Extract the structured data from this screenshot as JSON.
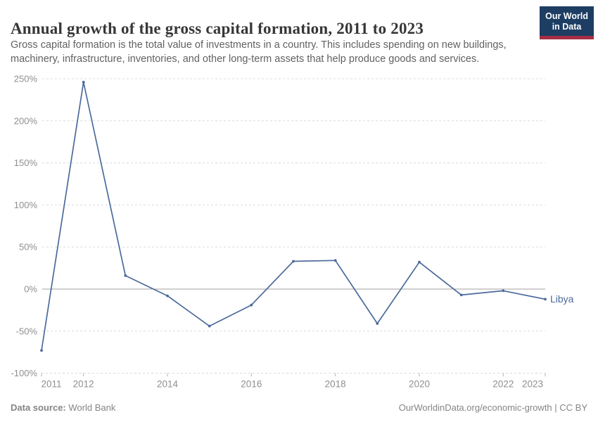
{
  "header": {
    "title": "Annual growth of the gross capital formation, 2011 to 2023",
    "subtitle_lines": [
      "Gross capital formation is the total value of investments in a country. This includes spending on new buildings,",
      "machinery, infrastructure, inventories, and other long-term assets that help produce goods and services."
    ]
  },
  "logo": {
    "line1": "Our World",
    "line2": "in Data",
    "bg_color": "#1d3d63",
    "accent_color": "#a52e44"
  },
  "chart_data": {
    "type": "line",
    "title": "Annual growth of the gross capital formation, 2011 to 2023",
    "x": [
      2011,
      2012,
      2013,
      2014,
      2015,
      2016,
      2017,
      2018,
      2019,
      2020,
      2021,
      2022,
      2023
    ],
    "series": [
      {
        "name": "Libya",
        "values": [
          -73,
          246,
          16,
          -8,
          -44,
          -19,
          33,
          34,
          -41,
          32,
          -7,
          -2,
          -12
        ],
        "color": "#4C6A9C"
      }
    ],
    "ylim": [
      -100,
      250
    ],
    "y_ticks": [
      {
        "value": 250,
        "label": "250%"
      },
      {
        "value": 200,
        "label": "200%"
      },
      {
        "value": 150,
        "label": "150%"
      },
      {
        "value": 100,
        "label": "100%"
      },
      {
        "value": 50,
        "label": "50%"
      },
      {
        "value": 0,
        "label": "0%"
      },
      {
        "value": -50,
        "label": "-50%"
      },
      {
        "value": -100,
        "label": "-100%"
      }
    ],
    "x_tick_years": [
      2011,
      2012,
      2014,
      2016,
      2018,
      2020,
      2022,
      2023
    ],
    "grid": "dashed-horizontal",
    "zero_line": true,
    "legend_position": "end-of-line",
    "colors": {
      "grid": "#dcdcdc",
      "zero_line": "#a0a0a0",
      "axis_tick": "#b5b5b5",
      "tick_text": "#8f8f8f"
    }
  },
  "footer": {
    "datasource_label": "Data source:",
    "datasource_value": "World Bank",
    "credit": "OurWorldinData.org/economic-growth | CC BY"
  }
}
